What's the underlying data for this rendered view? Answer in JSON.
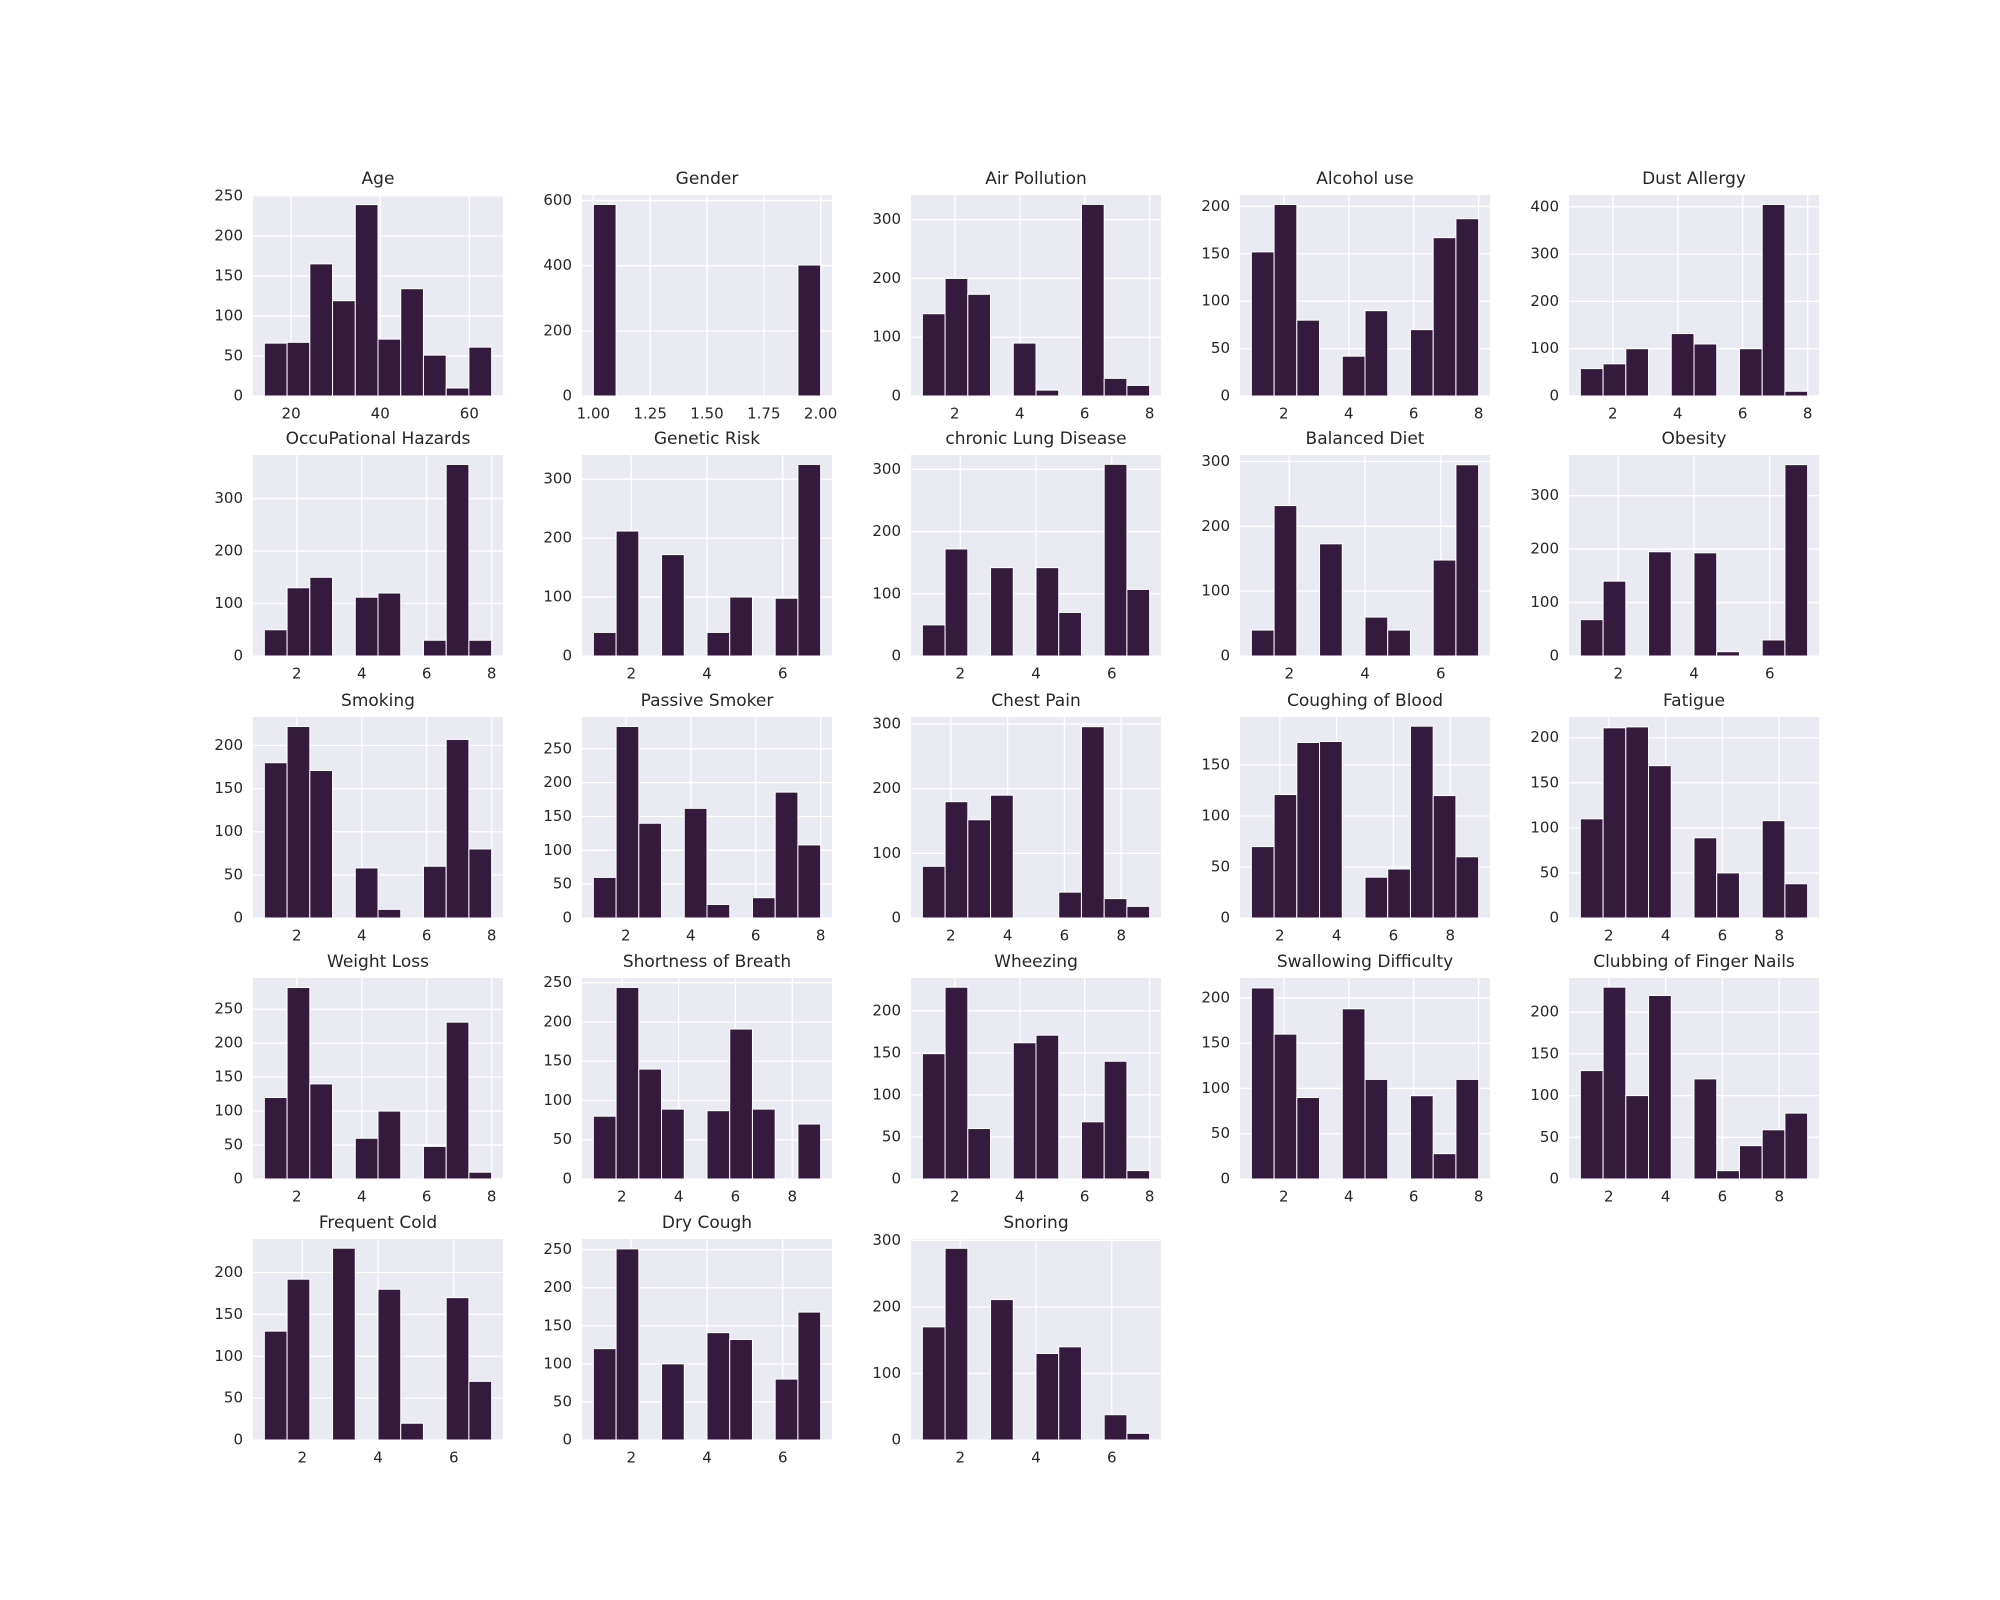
{
  "chart_data": [
    {
      "type": "histogram",
      "title": "Age",
      "bins": [
        14,
        19.1,
        24.2,
        29.3,
        34.4,
        39.5,
        44.6,
        49.7,
        54.8,
        59.9,
        65
      ],
      "values": [
        66,
        67,
        165,
        119,
        239,
        71,
        134,
        51,
        10,
        61
      ],
      "xlim": [
        11.45,
        67.55
      ],
      "ylim": [
        0,
        251
      ],
      "xticks": [
        20,
        40,
        60
      ],
      "yticks": [
        0,
        50,
        100,
        150,
        200,
        250
      ],
      "color": "#341a3d",
      "grid": true
    },
    {
      "type": "histogram",
      "title": "Gender",
      "bins": [
        1,
        1.1,
        1.2,
        1.3,
        1.4,
        1.5,
        1.6,
        1.7,
        1.8,
        1.9,
        2
      ],
      "values": [
        588,
        0,
        0,
        0,
        0,
        0,
        0,
        0,
        0,
        402
      ],
      "xlim": [
        0.95,
        2.05
      ],
      "ylim": [
        0,
        617
      ],
      "xticks": [
        {
          "value": 1,
          "label": "1.00"
        },
        1.25,
        {
          "value": 1.5,
          "label": "1.50"
        },
        1.75,
        {
          "value": 2,
          "label": "2.00"
        }
      ],
      "yticks": [
        0,
        200,
        400,
        600
      ],
      "color": "#341a3d",
      "grid": true
    },
    {
      "type": "histogram",
      "title": "Air Pollution",
      "bins": [
        1,
        1.7,
        2.4,
        3.1,
        3.8,
        4.5,
        5.2,
        5.9,
        6.6,
        7.3,
        8
      ],
      "values": [
        140,
        200,
        173,
        0,
        90,
        10,
        0,
        326,
        30,
        18
      ],
      "xlim": [
        0.65,
        8.35
      ],
      "ylim": [
        0,
        342
      ],
      "xticks": [
        2,
        4,
        6,
        8
      ],
      "yticks": [
        0,
        100,
        200,
        300
      ],
      "color": "#341a3d",
      "grid": true
    },
    {
      "type": "histogram",
      "title": "Alcohol use",
      "bins": [
        1,
        1.7,
        2.4,
        3.1,
        3.8,
        4.5,
        5.2,
        5.9,
        6.6,
        7.3,
        8
      ],
      "values": [
        152,
        202,
        80,
        0,
        42,
        90,
        0,
        70,
        167,
        187
      ],
      "xlim": [
        0.65,
        8.35
      ],
      "ylim": [
        0,
        212
      ],
      "xticks": [
        2,
        4,
        6,
        8
      ],
      "yticks": [
        0,
        50,
        100,
        150,
        200
      ],
      "color": "#341a3d",
      "grid": true
    },
    {
      "type": "histogram",
      "title": "Dust Allergy",
      "bins": [
        1,
        1.7,
        2.4,
        3.1,
        3.8,
        4.5,
        5.2,
        5.9,
        6.6,
        7.3,
        8
      ],
      "values": [
        58,
        68,
        100,
        0,
        132,
        110,
        0,
        100,
        405,
        10
      ],
      "xlim": [
        0.65,
        8.35
      ],
      "ylim": [
        0,
        425
      ],
      "xticks": [
        2,
        4,
        6,
        8
      ],
      "yticks": [
        0,
        100,
        200,
        300,
        400
      ],
      "color": "#341a3d",
      "grid": true
    },
    {
      "type": "histogram",
      "title": "OccuPational Hazards",
      "bins": [
        1,
        1.7,
        2.4,
        3.1,
        3.8,
        4.5,
        5.2,
        5.9,
        6.6,
        7.3,
        8
      ],
      "values": [
        50,
        130,
        150,
        0,
        112,
        120,
        0,
        30,
        365,
        30
      ],
      "xlim": [
        0.65,
        8.35
      ],
      "ylim": [
        0,
        383
      ],
      "xticks": [
        2,
        4,
        6,
        8
      ],
      "yticks": [
        0,
        100,
        200,
        300
      ],
      "color": "#341a3d",
      "grid": true
    },
    {
      "type": "histogram",
      "title": "Genetic Risk",
      "bins": [
        1,
        1.6,
        2.2,
        2.8,
        3.4,
        4,
        4.6,
        5.2,
        5.8,
        6.4,
        7
      ],
      "values": [
        40,
        212,
        0,
        172,
        0,
        40,
        100,
        0,
        98,
        325
      ],
      "xlim": [
        0.7,
        7.3
      ],
      "ylim": [
        0,
        341
      ],
      "xticks": [
        2,
        4,
        6
      ],
      "yticks": [
        0,
        100,
        200,
        300
      ],
      "color": "#341a3d",
      "grid": true
    },
    {
      "type": "histogram",
      "title": "chronic Lung Disease",
      "bins": [
        1,
        1.6,
        2.2,
        2.8,
        3.4,
        4,
        4.6,
        5.2,
        5.8,
        6.4,
        7
      ],
      "values": [
        50,
        172,
        0,
        142,
        0,
        142,
        70,
        0,
        308,
        107
      ],
      "xlim": [
        0.7,
        7.3
      ],
      "ylim": [
        0,
        323
      ],
      "xticks": [
        2,
        4,
        6
      ],
      "yticks": [
        0,
        100,
        200,
        300
      ],
      "color": "#341a3d",
      "grid": true
    },
    {
      "type": "histogram",
      "title": "Balanced Diet",
      "bins": [
        1,
        1.6,
        2.2,
        2.8,
        3.4,
        4,
        4.6,
        5.2,
        5.8,
        6.4,
        7
      ],
      "values": [
        40,
        232,
        0,
        173,
        0,
        60,
        40,
        0,
        148,
        295
      ],
      "xlim": [
        0.7,
        7.3
      ],
      "ylim": [
        0,
        310
      ],
      "xticks": [
        2,
        4,
        6
      ],
      "yticks": [
        0,
        100,
        200,
        300
      ],
      "color": "#341a3d",
      "grid": true
    },
    {
      "type": "histogram",
      "title": "Obesity",
      "bins": [
        1,
        1.6,
        2.2,
        2.8,
        3.4,
        4,
        4.6,
        5.2,
        5.8,
        6.4,
        7
      ],
      "values": [
        68,
        140,
        0,
        195,
        0,
        193,
        8,
        0,
        30,
        358
      ],
      "xlim": [
        0.7,
        7.3
      ],
      "ylim": [
        0,
        376
      ],
      "xticks": [
        2,
        4,
        6
      ],
      "yticks": [
        0,
        100,
        200,
        300
      ],
      "color": "#341a3d",
      "grid": true
    },
    {
      "type": "histogram",
      "title": "Smoking",
      "bins": [
        1,
        1.7,
        2.4,
        3.1,
        3.8,
        4.5,
        5.2,
        5.9,
        6.6,
        7.3,
        8
      ],
      "values": [
        180,
        222,
        171,
        0,
        58,
        10,
        0,
        60,
        207,
        80
      ],
      "xlim": [
        0.65,
        8.35
      ],
      "ylim": [
        0,
        233
      ],
      "xticks": [
        2,
        4,
        6,
        8
      ],
      "yticks": [
        0,
        50,
        100,
        150,
        200
      ],
      "color": "#341a3d",
      "grid": true
    },
    {
      "type": "histogram",
      "title": "Passive Smoker",
      "bins": [
        1,
        1.7,
        2.4,
        3.1,
        3.8,
        4.5,
        5.2,
        5.9,
        6.6,
        7.3,
        8
      ],
      "values": [
        60,
        283,
        140,
        0,
        162,
        20,
        0,
        30,
        186,
        108
      ],
      "xlim": [
        0.65,
        8.35
      ],
      "ylim": [
        0,
        297
      ],
      "xticks": [
        2,
        4,
        6,
        8
      ],
      "yticks": [
        0,
        50,
        100,
        150,
        200,
        250
      ],
      "color": "#341a3d",
      "grid": true
    },
    {
      "type": "histogram",
      "title": "Chest Pain",
      "bins": [
        1,
        1.8,
        2.6,
        3.4,
        4.2,
        5,
        5.8,
        6.6,
        7.4,
        8.2,
        9
      ],
      "values": [
        80,
        180,
        152,
        190,
        0,
        0,
        40,
        296,
        30,
        18
      ],
      "xlim": [
        0.6,
        9.4
      ],
      "ylim": [
        0,
        311
      ],
      "xticks": [
        2,
        4,
        6,
        8
      ],
      "yticks": [
        0,
        100,
        200,
        300
      ],
      "color": "#341a3d",
      "grid": true
    },
    {
      "type": "histogram",
      "title": "Coughing of Blood",
      "bins": [
        1,
        1.8,
        2.6,
        3.4,
        4.2,
        5,
        5.8,
        6.6,
        7.4,
        8.2,
        9
      ],
      "values": [
        70,
        121,
        172,
        173,
        0,
        40,
        48,
        188,
        120,
        60
      ],
      "xlim": [
        0.6,
        9.4
      ],
      "ylim": [
        0,
        197
      ],
      "xticks": [
        2,
        4,
        6,
        8
      ],
      "yticks": [
        0,
        50,
        100,
        150
      ],
      "color": "#341a3d",
      "grid": true
    },
    {
      "type": "histogram",
      "title": "Fatigue",
      "bins": [
        1,
        1.8,
        2.6,
        3.4,
        4.2,
        5,
        5.8,
        6.6,
        7.4,
        8.2,
        9
      ],
      "values": [
        110,
        211,
        212,
        169,
        0,
        89,
        50,
        0,
        108,
        38
      ],
      "xlim": [
        0.6,
        9.4
      ],
      "ylim": [
        0,
        223
      ],
      "xticks": [
        2,
        4,
        6,
        8
      ],
      "yticks": [
        0,
        50,
        100,
        150,
        200
      ],
      "color": "#341a3d",
      "grid": true
    },
    {
      "type": "histogram",
      "title": "Weight Loss",
      "bins": [
        1,
        1.7,
        2.4,
        3.1,
        3.8,
        4.5,
        5.2,
        5.9,
        6.6,
        7.3,
        8
      ],
      "values": [
        120,
        282,
        140,
        0,
        60,
        100,
        0,
        48,
        231,
        10
      ],
      "xlim": [
        0.65,
        8.35
      ],
      "ylim": [
        0,
        296
      ],
      "xticks": [
        2,
        4,
        6,
        8
      ],
      "yticks": [
        0,
        50,
        100,
        150,
        200,
        250
      ],
      "color": "#341a3d",
      "grid": true
    },
    {
      "type": "histogram",
      "title": "Shortness of Breath",
      "bins": [
        1,
        1.8,
        2.6,
        3.4,
        4.2,
        5,
        5.8,
        6.6,
        7.4,
        8.2,
        9
      ],
      "values": [
        80,
        244,
        140,
        89,
        0,
        87,
        191,
        89,
        0,
        70
      ],
      "xlim": [
        0.6,
        9.4
      ],
      "ylim": [
        0,
        256
      ],
      "xticks": [
        2,
        4,
        6,
        8
      ],
      "yticks": [
        0,
        50,
        100,
        150,
        200,
        250
      ],
      "color": "#341a3d",
      "grid": true
    },
    {
      "type": "histogram",
      "title": "Wheezing",
      "bins": [
        1,
        1.7,
        2.4,
        3.1,
        3.8,
        4.5,
        5.2,
        5.9,
        6.6,
        7.3,
        8
      ],
      "values": [
        149,
        228,
        60,
        0,
        162,
        171,
        0,
        68,
        140,
        10
      ],
      "xlim": [
        0.65,
        8.35
      ],
      "ylim": [
        0,
        239
      ],
      "xticks": [
        2,
        4,
        6,
        8
      ],
      "yticks": [
        0,
        50,
        100,
        150,
        200
      ],
      "color": "#341a3d",
      "grid": true
    },
    {
      "type": "histogram",
      "title": "Swallowing Difficulty",
      "bins": [
        1,
        1.7,
        2.4,
        3.1,
        3.8,
        4.5,
        5.2,
        5.9,
        6.6,
        7.3,
        8
      ],
      "values": [
        211,
        160,
        90,
        0,
        188,
        110,
        0,
        92,
        28,
        110
      ],
      "xlim": [
        0.65,
        8.35
      ],
      "ylim": [
        0,
        222
      ],
      "xticks": [
        2,
        4,
        6,
        8
      ],
      "yticks": [
        0,
        50,
        100,
        150,
        200
      ],
      "color": "#341a3d",
      "grid": true
    },
    {
      "type": "histogram",
      "title": "Clubbing of Finger Nails",
      "bins": [
        1,
        1.8,
        2.6,
        3.4,
        4.2,
        5,
        5.8,
        6.6,
        7.4,
        8.2,
        9
      ],
      "values": [
        130,
        230,
        100,
        220,
        0,
        120,
        10,
        40,
        59,
        79
      ],
      "xlim": [
        0.6,
        9.4
      ],
      "ylim": [
        0,
        241
      ],
      "xticks": [
        2,
        4,
        6,
        8
      ],
      "yticks": [
        0,
        50,
        100,
        150,
        200
      ],
      "color": "#341a3d",
      "grid": true
    },
    {
      "type": "histogram",
      "title": "Frequent Cold",
      "bins": [
        1,
        1.6,
        2.2,
        2.8,
        3.4,
        4,
        4.6,
        5.2,
        5.8,
        6.4,
        7
      ],
      "values": [
        130,
        192,
        0,
        229,
        0,
        180,
        20,
        0,
        170,
        70
      ],
      "xlim": [
        0.7,
        7.3
      ],
      "ylim": [
        0,
        240
      ],
      "xticks": [
        2,
        4,
        6
      ],
      "yticks": [
        0,
        50,
        100,
        150,
        200
      ],
      "color": "#341a3d",
      "grid": true
    },
    {
      "type": "histogram",
      "title": "Dry Cough",
      "bins": [
        1,
        1.6,
        2.2,
        2.8,
        3.4,
        4,
        4.6,
        5.2,
        5.8,
        6.4,
        7
      ],
      "values": [
        120,
        251,
        0,
        100,
        0,
        141,
        132,
        0,
        80,
        168
      ],
      "xlim": [
        0.7,
        7.3
      ],
      "ylim": [
        0,
        264
      ],
      "xticks": [
        2,
        4,
        6
      ],
      "yticks": [
        0,
        50,
        100,
        150,
        200,
        250
      ],
      "color": "#341a3d",
      "grid": true
    },
    {
      "type": "histogram",
      "title": "Snoring",
      "bins": [
        1,
        1.6,
        2.2,
        2.8,
        3.4,
        4,
        4.6,
        5.2,
        5.8,
        6.4,
        7
      ],
      "values": [
        170,
        288,
        0,
        211,
        0,
        130,
        140,
        0,
        38,
        10
      ],
      "xlim": [
        0.7,
        7.3
      ],
      "ylim": [
        0,
        302
      ],
      "xticks": [
        2,
        4,
        6
      ],
      "yticks": [
        0,
        100,
        200,
        300
      ],
      "color": "#341a3d",
      "grid": true
    }
  ]
}
